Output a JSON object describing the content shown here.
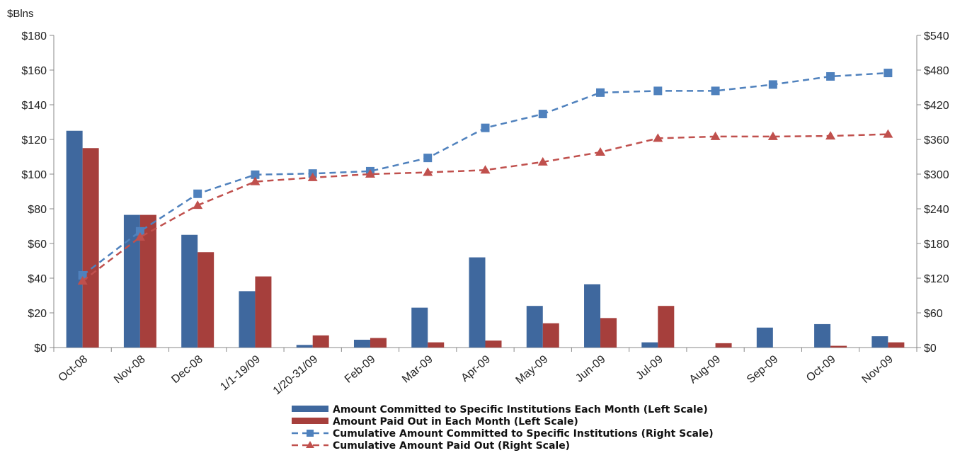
{
  "chart_data": {
    "type": "bar",
    "unit_label": "$Blns",
    "categories": [
      "Oct-08",
      "Nov-08",
      "Dec-08",
      "1/1-19/09",
      "1/20-31/09",
      "Feb-09",
      "Mar-09",
      "Apr-09",
      "May-09",
      "Jun-09",
      "Jul-09",
      "Aug-09",
      "Sep-09",
      "Oct-09",
      "Nov-09"
    ],
    "left_axis": {
      "ylim": [
        0,
        180
      ],
      "ticks": [
        0,
        20,
        40,
        60,
        80,
        100,
        120,
        140,
        160,
        180
      ],
      "tick_labels": [
        "$0",
        "$20",
        "$40",
        "$60",
        "$80",
        "$100",
        "$120",
        "$140",
        "$160",
        "$180"
      ]
    },
    "right_axis": {
      "ylim": [
        0,
        540
      ],
      "ticks": [
        0,
        60,
        120,
        180,
        240,
        300,
        360,
        420,
        480,
        540
      ],
      "tick_labels": [
        "$0",
        "$60",
        "$120",
        "$180",
        "$240",
        "$300",
        "$360",
        "$420",
        "$480",
        "$540"
      ]
    },
    "series": [
      {
        "name": "Amount Committed to Specific Institutions Each Month (Left Scale)",
        "kind": "bar",
        "axis": "left",
        "color": "#3f689e",
        "values": [
          125,
          76.5,
          65,
          32.5,
          1.5,
          4.5,
          23,
          52,
          24,
          36.5,
          3,
          0,
          11.5,
          13.5,
          6.5
        ]
      },
      {
        "name": "Amount Paid Out in Each Month (Left Scale)",
        "kind": "bar",
        "axis": "left",
        "color": "#a63f3c",
        "values": [
          115,
          76.5,
          55,
          41,
          7,
          5.5,
          3,
          4,
          14,
          17,
          24,
          2.5,
          0,
          1,
          3
        ]
      },
      {
        "name": "Cumulative Amount Committed to Specific Institutions (Right Scale)",
        "kind": "line",
        "axis": "right",
        "color": "#4f81bd",
        "marker": "square",
        "dash": true,
        "values": [
          125,
          201,
          266,
          299,
          301,
          305,
          328,
          380,
          404,
          441,
          444,
          444,
          455,
          469,
          475
        ]
      },
      {
        "name": "Cumulative Amount Paid Out (Right Scale)",
        "kind": "line",
        "axis": "right",
        "color": "#c0504d",
        "marker": "triangle",
        "dash": true,
        "values": [
          115,
          191,
          246,
          287,
          294,
          300,
          303,
          307,
          321,
          338,
          362,
          365,
          365,
          366,
          369
        ]
      }
    ],
    "legend_position": "bottom",
    "grid": false
  }
}
